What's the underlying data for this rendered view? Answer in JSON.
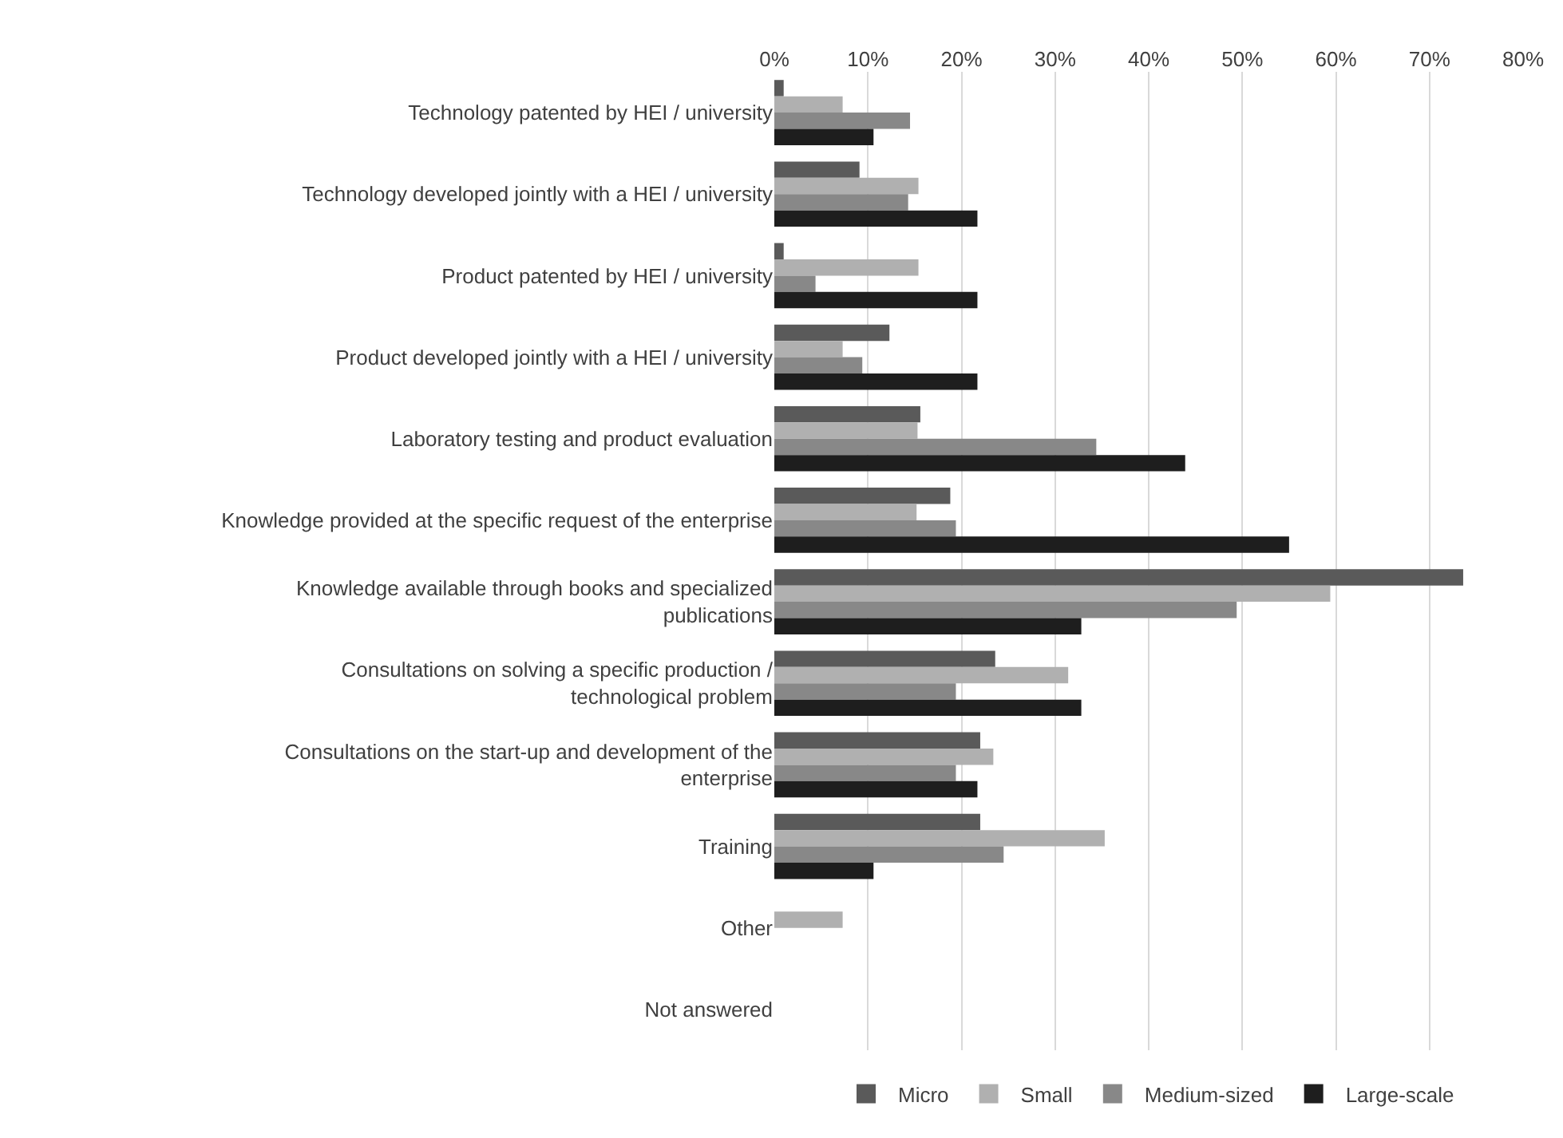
{
  "chart_data": {
    "type": "bar",
    "orientation": "horizontal",
    "categories": [
      "Technology patented by HEI / university",
      "Technology developed jointly with a HEI / university",
      "Product patented by HEI / university",
      "Product developed jointly with a HEI / university",
      "Laboratory testing and product evaluation",
      "Knowledge provided at the specific request of the enterprise",
      "Knowledge available through books and specialized publications",
      "Consultations on solving a specific production / technological problem",
      "Consultations on the start-up and development of the enterprise",
      "Training",
      "Other",
      "Not answered"
    ],
    "series": [
      {
        "name": "Micro",
        "color": "#5a5a5a",
        "values": [
          1.0,
          9.1,
          1.0,
          12.3,
          15.6,
          18.8,
          73.6,
          23.6,
          22.0,
          22.0,
          0,
          0
        ]
      },
      {
        "name": "Small",
        "color": "#b0b0b0",
        "values": [
          7.3,
          15.4,
          15.4,
          7.3,
          15.3,
          15.2,
          59.4,
          31.4,
          23.4,
          35.3,
          7.3,
          0
        ]
      },
      {
        "name": "Medium-sized",
        "color": "#888888",
        "values": [
          14.5,
          14.3,
          4.4,
          9.4,
          34.4,
          19.4,
          49.4,
          19.4,
          19.4,
          24.5,
          0,
          0
        ]
      },
      {
        "name": "Large-scale",
        "color": "#1e1e1e",
        "values": [
          10.6,
          21.7,
          21.7,
          21.7,
          43.9,
          55.0,
          32.8,
          32.8,
          21.7,
          10.6,
          0,
          0
        ]
      }
    ],
    "xlim": [
      0,
      80
    ],
    "xticks": [
      {
        "value": 0,
        "label": "0%"
      },
      {
        "value": 10,
        "label": "10%"
      },
      {
        "value": 20,
        "label": "20%"
      },
      {
        "value": 30,
        "label": "30%"
      },
      {
        "value": 40,
        "label": "40%"
      },
      {
        "value": 50,
        "label": "50%"
      },
      {
        "value": 60,
        "label": "60%"
      },
      {
        "value": 70,
        "label": "70%"
      },
      {
        "value": 80,
        "label": "80%"
      }
    ],
    "grid": "x",
    "legend": "bottom"
  }
}
